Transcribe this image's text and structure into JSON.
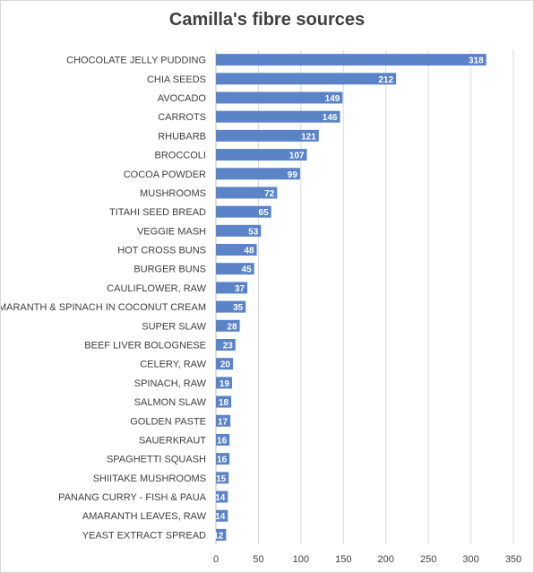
{
  "chart_data": {
    "type": "bar",
    "orientation": "horizontal",
    "title": "Camilla's fibre sources",
    "xlabel": "",
    "ylabel": "",
    "xlim": [
      0,
      350
    ],
    "x_ticks": [
      0,
      50,
      100,
      150,
      200,
      250,
      300,
      350
    ],
    "grid": true,
    "legend": "none",
    "bar_color": "#5b83c8",
    "categories": [
      "CHOCOLATE JELLY PUDDING",
      "CHIA SEEDS",
      "AVOCADO",
      "CARROTS",
      "RHUBARB",
      "BROCCOLI",
      "COCOA POWDER",
      "MUSHROOMS",
      "TITAHI SEED BREAD",
      "VEGGIE MASH",
      "HOT CROSS BUNS",
      "BURGER BUNS",
      "CAULIFLOWER, RAW",
      "AMARANTH & SPINACH IN COCONUT CREAM",
      "SUPER SLAW",
      "BEEF LIVER BOLOGNESE",
      "CELERY, RAW",
      "SPINACH, RAW",
      "SALMON SLAW",
      "GOLDEN PASTE",
      "SAUERKRAUT",
      "SPAGHETTI SQUASH",
      "SHIITAKE MUSHROOMS",
      "PANANG CURRY - FISH & PAUA",
      "AMARANTH LEAVES, RAW",
      "YEAST EXTRACT SPREAD"
    ],
    "values": [
      318,
      212,
      149,
      146,
      121,
      107,
      99,
      72,
      65,
      53,
      48,
      45,
      37,
      35,
      28,
      23,
      20,
      19,
      18,
      17,
      16,
      16,
      15,
      14,
      14,
      12
    ]
  }
}
